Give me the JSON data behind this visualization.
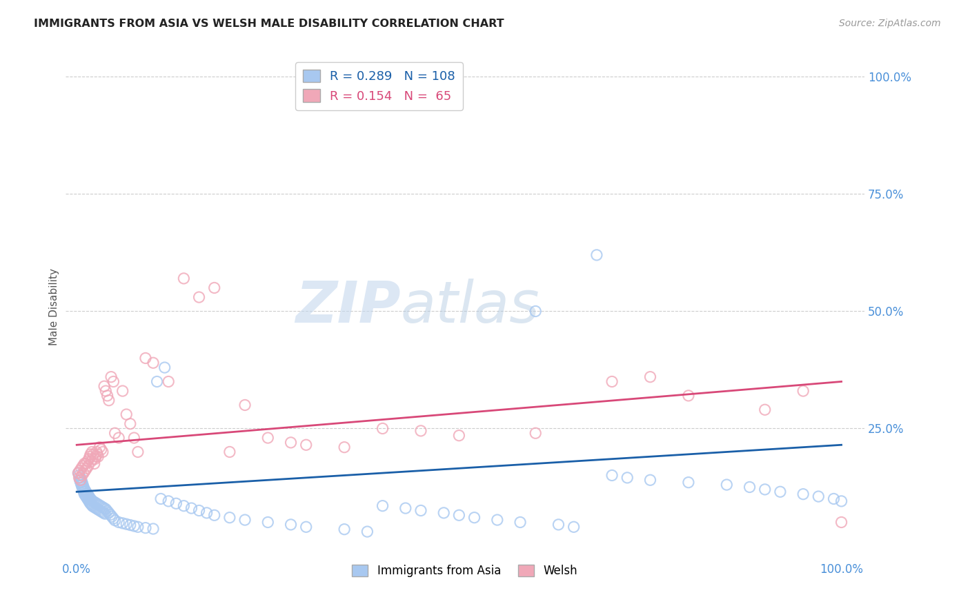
{
  "title": "IMMIGRANTS FROM ASIA VS WELSH MALE DISABILITY CORRELATION CHART",
  "source": "Source: ZipAtlas.com",
  "ylabel": "Male Disability",
  "blue_color": "#a8c8f0",
  "pink_color": "#f0a8b8",
  "blue_line_color": "#1a5fa8",
  "pink_line_color": "#d84878",
  "legend_blue_R": "0.289",
  "legend_blue_N": "108",
  "legend_pink_R": "0.154",
  "legend_pink_N": "65",
  "watermark_zip": "ZIP",
  "watermark_atlas": "atlas",
  "blue_scatter_x": [
    0.002,
    0.003,
    0.004,
    0.005,
    0.005,
    0.006,
    0.006,
    0.007,
    0.007,
    0.008,
    0.008,
    0.009,
    0.009,
    0.01,
    0.01,
    0.011,
    0.011,
    0.012,
    0.012,
    0.013,
    0.013,
    0.014,
    0.014,
    0.015,
    0.015,
    0.016,
    0.016,
    0.017,
    0.017,
    0.018,
    0.018,
    0.019,
    0.019,
    0.02,
    0.02,
    0.021,
    0.022,
    0.023,
    0.024,
    0.025,
    0.026,
    0.027,
    0.028,
    0.029,
    0.03,
    0.031,
    0.032,
    0.033,
    0.034,
    0.035,
    0.036,
    0.037,
    0.038,
    0.04,
    0.042,
    0.044,
    0.046,
    0.048,
    0.05,
    0.055,
    0.06,
    0.065,
    0.07,
    0.075,
    0.08,
    0.09,
    0.1,
    0.11,
    0.12,
    0.13,
    0.14,
    0.15,
    0.16,
    0.17,
    0.18,
    0.2,
    0.22,
    0.25,
    0.28,
    0.3,
    0.35,
    0.38,
    0.4,
    0.43,
    0.45,
    0.48,
    0.5,
    0.52,
    0.55,
    0.58,
    0.6,
    0.63,
    0.65,
    0.68,
    0.7,
    0.72,
    0.75,
    0.8,
    0.85,
    0.88,
    0.9,
    0.92,
    0.95,
    0.97,
    0.99,
    1.0,
    0.105,
    0.115
  ],
  "blue_scatter_y": [
    0.155,
    0.15,
    0.14,
    0.135,
    0.145,
    0.13,
    0.14,
    0.125,
    0.135,
    0.12,
    0.13,
    0.115,
    0.125,
    0.11,
    0.12,
    0.108,
    0.118,
    0.105,
    0.115,
    0.103,
    0.112,
    0.1,
    0.11,
    0.098,
    0.108,
    0.095,
    0.105,
    0.092,
    0.102,
    0.09,
    0.1,
    0.088,
    0.098,
    0.086,
    0.096,
    0.084,
    0.094,
    0.082,
    0.092,
    0.08,
    0.09,
    0.078,
    0.088,
    0.076,
    0.086,
    0.074,
    0.084,
    0.072,
    0.082,
    0.07,
    0.08,
    0.068,
    0.078,
    0.074,
    0.07,
    0.066,
    0.062,
    0.058,
    0.054,
    0.05,
    0.048,
    0.046,
    0.044,
    0.042,
    0.04,
    0.038,
    0.036,
    0.1,
    0.095,
    0.09,
    0.085,
    0.08,
    0.075,
    0.07,
    0.065,
    0.06,
    0.055,
    0.05,
    0.045,
    0.04,
    0.035,
    0.03,
    0.085,
    0.08,
    0.075,
    0.07,
    0.065,
    0.06,
    0.055,
    0.05,
    0.5,
    0.045,
    0.04,
    0.62,
    0.15,
    0.145,
    0.14,
    0.135,
    0.13,
    0.125,
    0.12,
    0.115,
    0.11,
    0.105,
    0.1,
    0.095,
    0.35,
    0.38
  ],
  "pink_scatter_x": [
    0.002,
    0.003,
    0.004,
    0.005,
    0.006,
    0.007,
    0.008,
    0.009,
    0.01,
    0.011,
    0.012,
    0.013,
    0.014,
    0.015,
    0.016,
    0.017,
    0.018,
    0.019,
    0.02,
    0.021,
    0.022,
    0.023,
    0.024,
    0.025,
    0.026,
    0.027,
    0.028,
    0.03,
    0.032,
    0.034,
    0.036,
    0.038,
    0.04,
    0.042,
    0.045,
    0.048,
    0.05,
    0.055,
    0.06,
    0.065,
    0.07,
    0.075,
    0.08,
    0.09,
    0.1,
    0.12,
    0.14,
    0.16,
    0.18,
    0.2,
    0.22,
    0.25,
    0.28,
    0.3,
    0.35,
    0.4,
    0.45,
    0.5,
    0.6,
    0.7,
    0.75,
    0.8,
    0.9,
    0.95,
    1.0
  ],
  "pink_scatter_y": [
    0.155,
    0.145,
    0.16,
    0.14,
    0.165,
    0.15,
    0.17,
    0.155,
    0.175,
    0.16,
    0.175,
    0.165,
    0.18,
    0.17,
    0.185,
    0.19,
    0.195,
    0.18,
    0.2,
    0.185,
    0.195,
    0.175,
    0.185,
    0.19,
    0.2,
    0.195,
    0.19,
    0.21,
    0.205,
    0.2,
    0.34,
    0.33,
    0.32,
    0.31,
    0.36,
    0.35,
    0.24,
    0.23,
    0.33,
    0.28,
    0.26,
    0.23,
    0.2,
    0.4,
    0.39,
    0.35,
    0.57,
    0.53,
    0.55,
    0.2,
    0.3,
    0.23,
    0.22,
    0.215,
    0.21,
    0.25,
    0.245,
    0.235,
    0.24,
    0.35,
    0.36,
    0.32,
    0.29,
    0.33,
    0.05
  ]
}
